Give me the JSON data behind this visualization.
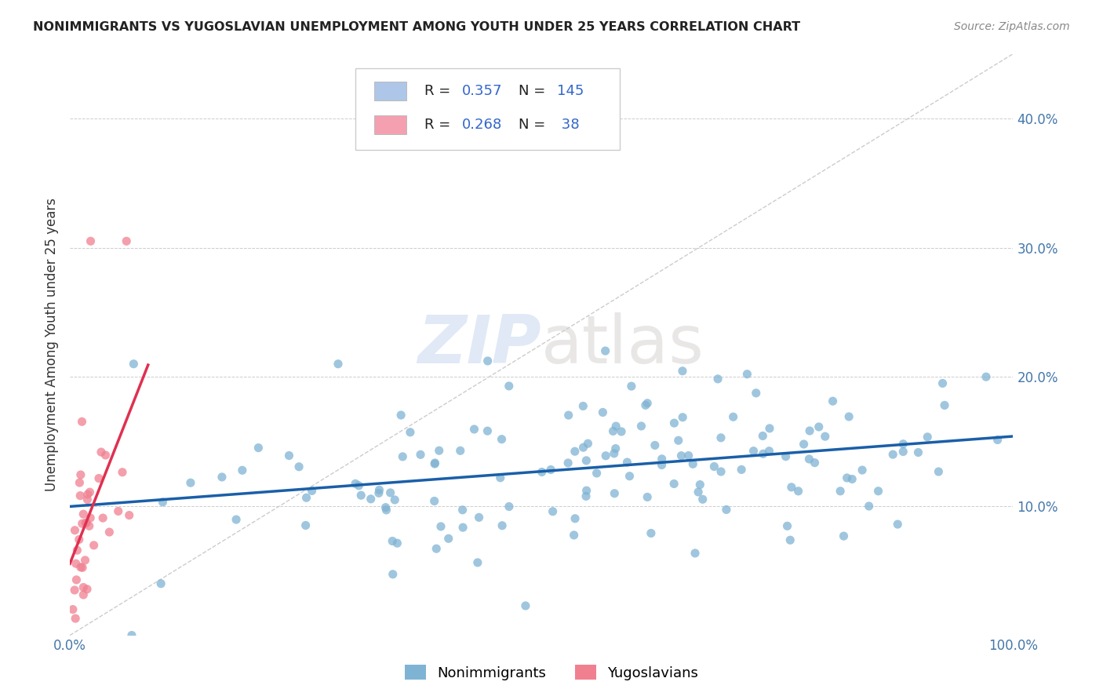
{
  "title": "NONIMMIGRANTS VS YUGOSLAVIAN UNEMPLOYMENT AMONG YOUTH UNDER 25 YEARS CORRELATION CHART",
  "source": "Source: ZipAtlas.com",
  "ylabel_label": "Unemployment Among Youth under 25 years",
  "legend_nonimm": {
    "R": 0.357,
    "N": 145,
    "color": "#aec6e8"
  },
  "legend_yugo": {
    "R": 0.268,
    "N": 38,
    "color": "#f4a0b0"
  },
  "nonimm_scatter_color": "#7fb3d3",
  "yugo_scatter_color": "#f08090",
  "nonimm_line_color": "#1a5fa8",
  "yugo_line_color": "#e03050",
  "diagonal_color": "#cccccc",
  "watermark_zip": "ZIP",
  "watermark_atlas": "atlas",
  "background": "#ffffff",
  "xlim": [
    0.0,
    1.0
  ],
  "ylim": [
    0.0,
    0.45
  ]
}
